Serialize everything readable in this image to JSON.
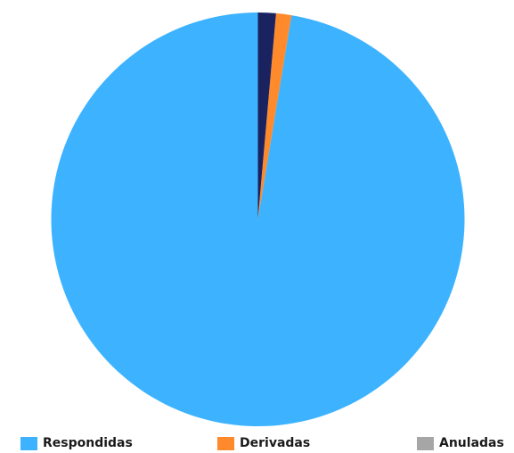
{
  "chart_data": {
    "type": "pie",
    "start_angle": "top",
    "direction": "counter-clockwise",
    "slices": [
      {
        "label": "Respondidas",
        "value": 97.4,
        "color": "#3DB3FF"
      },
      {
        "label": "Derivadas",
        "value": 1.2,
        "color": "#FF8A2B"
      },
      {
        "label": "Anuladas",
        "value": 0.0,
        "color": "#A6A6A6"
      },
      {
        "label": "",
        "value": 1.4,
        "color": "#1A2360"
      }
    ],
    "legend": {
      "position": "bottom",
      "items": [
        {
          "label": "Respondidas",
          "color": "#3DB3FF"
        },
        {
          "label": "Derivadas",
          "color": "#FF8A2B"
        },
        {
          "label": "Anuladas",
          "color": "#A6A6A6"
        }
      ]
    }
  }
}
